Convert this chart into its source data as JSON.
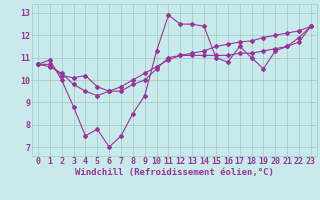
{
  "x": [
    0,
    1,
    2,
    3,
    4,
    5,
    6,
    7,
    8,
    9,
    10,
    11,
    12,
    13,
    14,
    15,
    16,
    17,
    18,
    19,
    20,
    21,
    22,
    23
  ],
  "line1": [
    10.7,
    10.9,
    10.0,
    8.8,
    7.5,
    7.8,
    7.0,
    7.5,
    8.5,
    9.3,
    11.3,
    12.9,
    12.5,
    12.5,
    12.4,
    11.0,
    10.8,
    11.5,
    11.0,
    10.5,
    11.3,
    11.5,
    11.9,
    12.4
  ],
  "line2": [
    10.7,
    10.7,
    10.2,
    10.1,
    10.2,
    9.7,
    9.5,
    9.5,
    9.8,
    10.0,
    10.5,
    11.0,
    11.1,
    11.1,
    11.1,
    11.1,
    11.1,
    11.2,
    11.2,
    11.3,
    11.4,
    11.5,
    11.7,
    12.4
  ],
  "line3": [
    10.7,
    10.6,
    10.3,
    9.8,
    9.5,
    9.3,
    9.5,
    9.7,
    10.0,
    10.3,
    10.6,
    10.9,
    11.1,
    11.2,
    11.3,
    11.5,
    11.6,
    11.7,
    11.75,
    11.9,
    12.0,
    12.1,
    12.2,
    12.4
  ],
  "color": "#993399",
  "bg_color": "#c8eaea",
  "grid_color": "#9ec8c8",
  "xlabel": "Windchill (Refroidissement éolien,°C)",
  "ylabel_ticks": [
    7,
    8,
    9,
    10,
    11,
    12,
    13
  ],
  "xlim": [
    -0.5,
    23.5
  ],
  "ylim": [
    6.6,
    13.4
  ],
  "xlabel_fontsize": 6.5,
  "tick_fontsize": 6.0
}
